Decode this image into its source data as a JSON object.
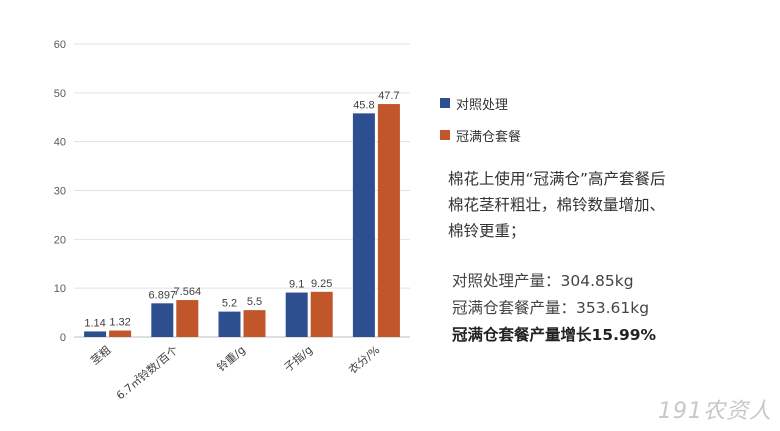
{
  "chart_data": {
    "type": "bar",
    "categories": [
      "茎粗",
      "6.7㎡铃数/百个",
      "铃重/g",
      "子指/g",
      "衣分/%"
    ],
    "series": [
      {
        "name": "对照处理",
        "values": [
          1.14,
          6.897,
          5.2,
          9.1,
          45.8
        ],
        "labels": [
          "1.14",
          "6.897",
          "5.2",
          "9.1",
          "45.8"
        ]
      },
      {
        "name": "冠满仓套餐",
        "values": [
          1.32,
          7.564,
          5.5,
          9.25,
          47.7
        ],
        "labels": [
          "1.32",
          "7.564",
          "5.5",
          "9.25",
          "47.7"
        ]
      }
    ],
    "title": "",
    "xlabel": "",
    "ylabel": "",
    "ylim": [
      0,
      60
    ],
    "yticks": [
      0,
      10,
      20,
      30,
      40,
      50,
      60
    ],
    "grid": true,
    "legend_position": "right",
    "colors": [
      "#2e4f8f",
      "#c0562a"
    ]
  },
  "legend": {
    "items": [
      {
        "label": "对照处理",
        "color": "#2e4f8f"
      },
      {
        "label": "冠满仓套餐",
        "color": "#c0562a"
      }
    ]
  },
  "notes": {
    "line1": "棉花上使用“冠满仓”高产套餐后",
    "line2": "棉花茎秆粗壮，棉铃数量增加、",
    "line3": "棉铃更重；"
  },
  "yield": {
    "control": "对照处理产量：304.85kg",
    "treatment": "冠满仓套餐产量：353.61kg",
    "increase": "冠满仓套餐产量增长15.99%"
  },
  "watermark": "191农资人"
}
